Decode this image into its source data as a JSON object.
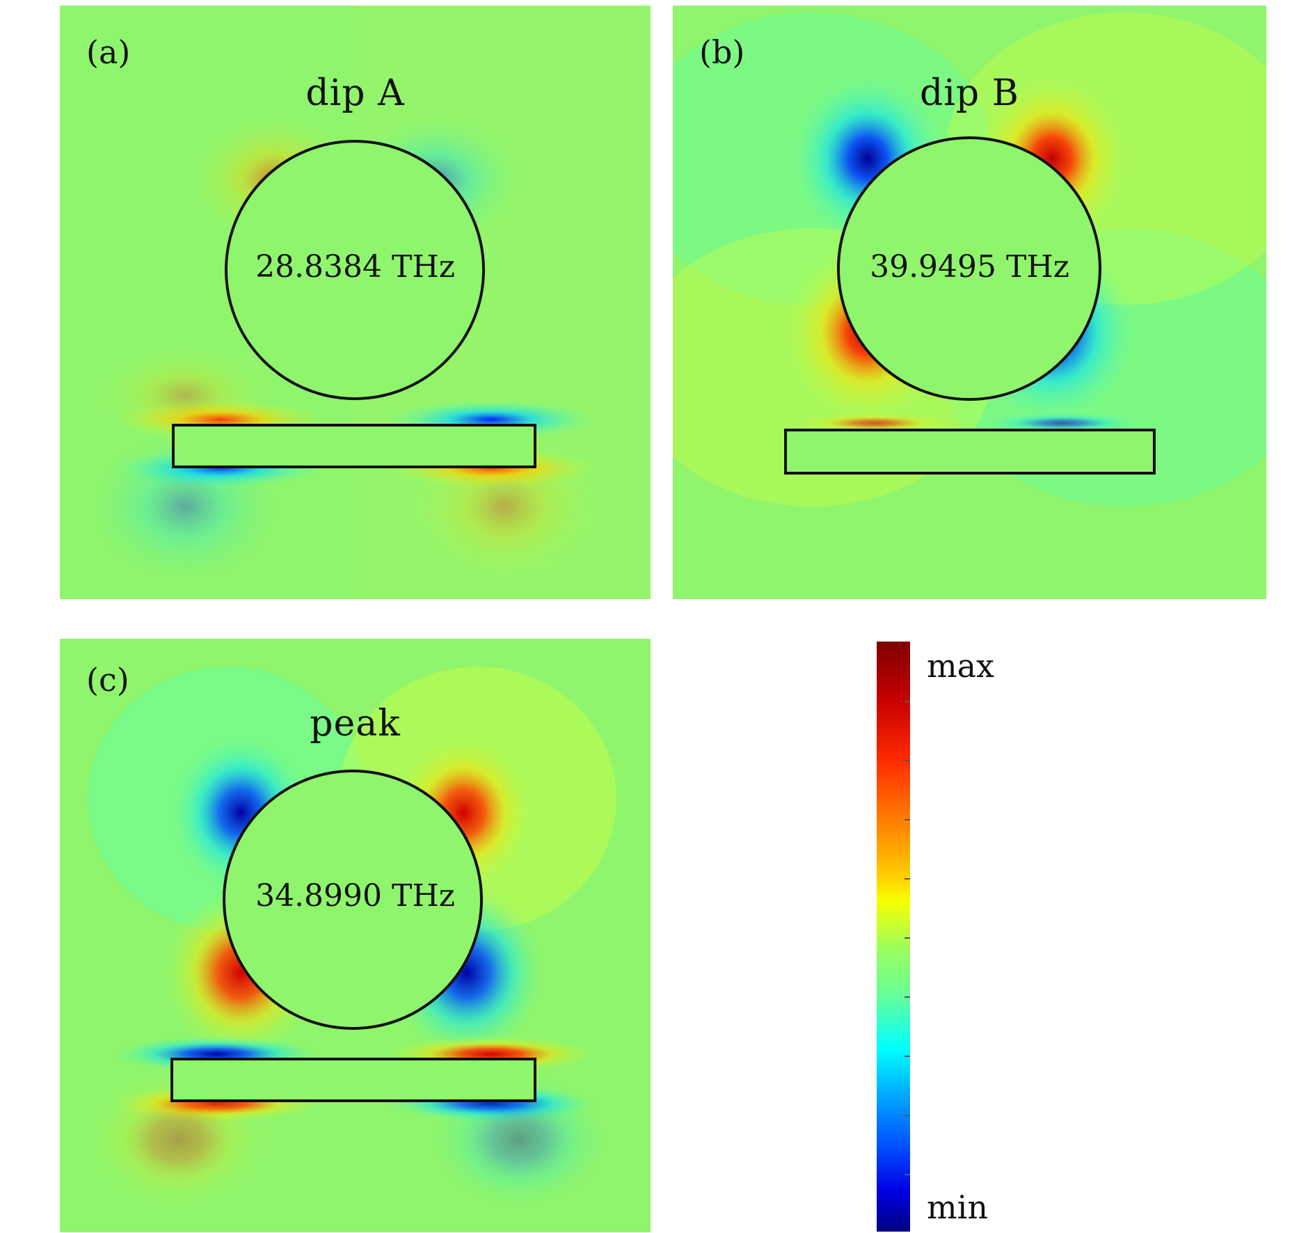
{
  "panels": [
    {
      "label": "(a)",
      "title": "dip A",
      "frequency": "28.8384 THz"
    },
    {
      "label": "(b)",
      "title": "dip B",
      "frequency": "39.9495 THz"
    },
    {
      "label": "(c)",
      "title": "peak",
      "frequency": "34.8990 THz"
    }
  ],
  "colorbar": {
    "max_label": "max",
    "min_label": "min"
  },
  "colors": {
    "background_field": "#8ff56c",
    "max": "#7f0000",
    "min": "#00007f",
    "outline": "#111111"
  }
}
